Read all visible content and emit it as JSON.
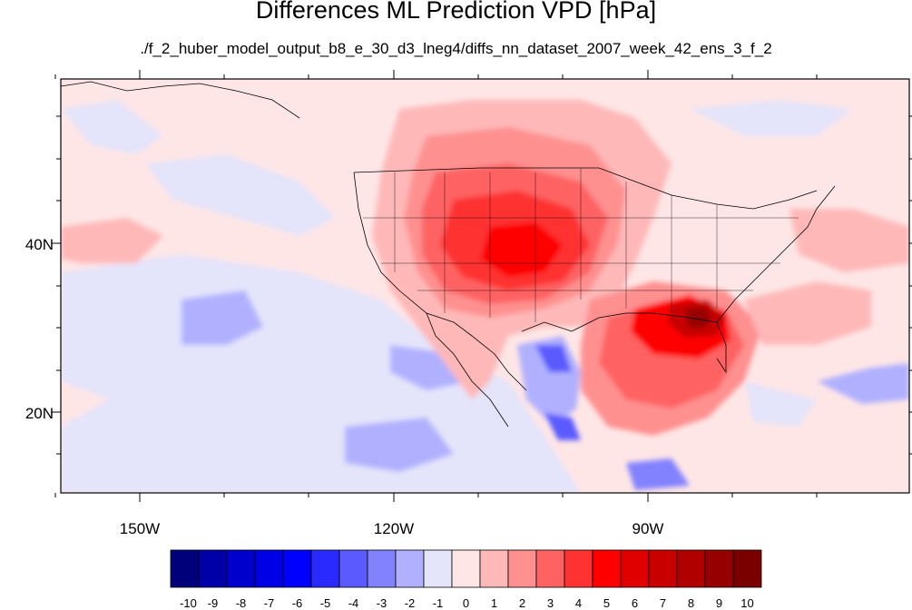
{
  "title": "Differences ML Prediction VPD [hPa]",
  "subtitle": "./f_2_huber_model_output_b8_e_30_d3_lneg4/diffs_nn_dataset_2007_week_42_ens_3_f_2",
  "map": {
    "lon_ticks": [
      "150W",
      "120W",
      "90W"
    ],
    "lat_ticks": [
      "40N",
      "20N"
    ]
  },
  "colorbar": {
    "labels": [
      "-10",
      "-9",
      "-8",
      "-7",
      "-6",
      "-5",
      "-4",
      "-3",
      "-2",
      "-1",
      "0",
      "1",
      "2",
      "3",
      "4",
      "5",
      "6",
      "7",
      "8",
      "9",
      "10"
    ],
    "colors": [
      "#00007a",
      "#0000a8",
      "#0000cc",
      "#0000e6",
      "#0000ff",
      "#2a2aff",
      "#5a5aff",
      "#8282ff",
      "#b0b0ff",
      "#e4e4fa",
      "#ffe6e6",
      "#ffb8b8",
      "#ff9090",
      "#ff6262",
      "#ff3232",
      "#ff0000",
      "#e00000",
      "#c80000",
      "#b00000",
      "#960000",
      "#7a0000"
    ]
  }
}
